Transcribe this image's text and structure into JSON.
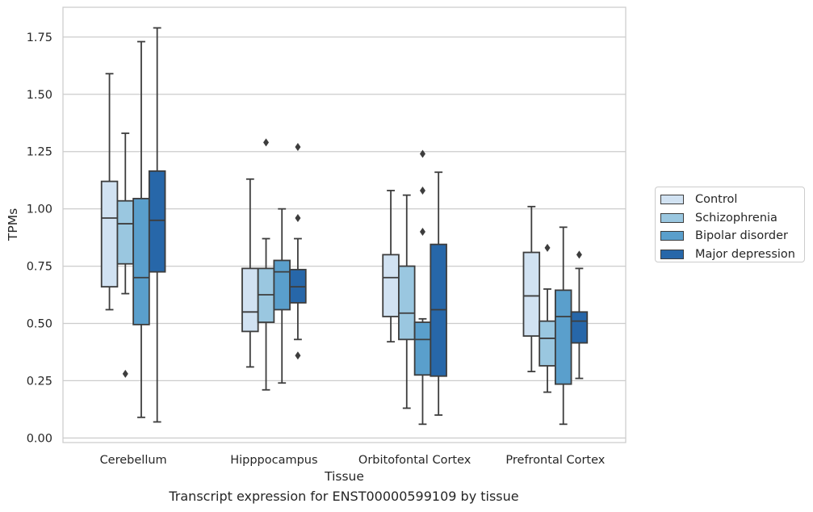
{
  "chart_data": {
    "type": "box",
    "title": "Transcript expression for ENST00000599109 by tissue",
    "xlabel": "Tissue",
    "ylabel": "TPMs",
    "ylim": [
      -0.02,
      1.88
    ],
    "yticks": [
      0.0,
      0.25,
      0.5,
      0.75,
      1.0,
      1.25,
      1.5,
      1.75
    ],
    "ytick_labels": [
      "0.00",
      "0.25",
      "0.50",
      "0.75",
      "1.00",
      "1.25",
      "1.50",
      "1.75"
    ],
    "grid": "horizontal",
    "legend_position": "right",
    "categories": [
      "Cerebellum",
      "Hipppocampus",
      "Orbitofontal Cortex",
      "Prefrontal Cortex"
    ],
    "series": [
      {
        "name": "Control",
        "color": "#d1e2f2",
        "boxes": [
          {
            "whislo": 0.56,
            "q1": 0.66,
            "med": 0.96,
            "q3": 1.12,
            "whishi": 1.59,
            "fliers": []
          },
          {
            "whislo": 0.31,
            "q1": 0.465,
            "med": 0.55,
            "q3": 0.74,
            "whishi": 1.13,
            "fliers": []
          },
          {
            "whislo": 0.42,
            "q1": 0.53,
            "med": 0.7,
            "q3": 0.8,
            "whishi": 1.08,
            "fliers": []
          },
          {
            "whislo": 0.29,
            "q1": 0.445,
            "med": 0.62,
            "q3": 0.81,
            "whishi": 1.01,
            "fliers": []
          }
        ]
      },
      {
        "name": "Schizophrenia",
        "color": "#9ac7e0",
        "boxes": [
          {
            "whislo": 0.63,
            "q1": 0.76,
            "med": 0.935,
            "q3": 1.035,
            "whishi": 1.33,
            "fliers": [
              0.28
            ]
          },
          {
            "whislo": 0.21,
            "q1": 0.505,
            "med": 0.625,
            "q3": 0.74,
            "whishi": 0.87,
            "fliers": [
              1.29
            ]
          },
          {
            "whislo": 0.13,
            "q1": 0.43,
            "med": 0.545,
            "q3": 0.75,
            "whishi": 1.06,
            "fliers": []
          },
          {
            "whislo": 0.2,
            "q1": 0.315,
            "med": 0.435,
            "q3": 0.51,
            "whishi": 0.65,
            "fliers": [
              0.83
            ]
          }
        ]
      },
      {
        "name": "Bipolar disorder",
        "color": "#5a9fcc",
        "boxes": [
          {
            "whislo": 0.09,
            "q1": 0.495,
            "med": 0.7,
            "q3": 1.045,
            "whishi": 1.73,
            "fliers": []
          },
          {
            "whislo": 0.24,
            "q1": 0.56,
            "med": 0.725,
            "q3": 0.775,
            "whishi": 1.0,
            "fliers": []
          },
          {
            "whislo": 0.06,
            "q1": 0.275,
            "med": 0.43,
            "q3": 0.505,
            "whishi": 0.52,
            "fliers": [
              0.9,
              1.08,
              1.24
            ]
          },
          {
            "whislo": 0.06,
            "q1": 0.235,
            "med": 0.53,
            "q3": 0.645,
            "whishi": 0.92,
            "fliers": []
          }
        ]
      },
      {
        "name": "Major depression",
        "color": "#2767a9",
        "boxes": [
          {
            "whislo": 0.07,
            "q1": 0.725,
            "med": 0.95,
            "q3": 1.165,
            "whishi": 1.79,
            "fliers": []
          },
          {
            "whislo": 0.43,
            "q1": 0.59,
            "med": 0.66,
            "q3": 0.735,
            "whishi": 0.87,
            "fliers": [
              0.36,
              0.96,
              1.27
            ]
          },
          {
            "whislo": 0.1,
            "q1": 0.27,
            "med": 0.56,
            "q3": 0.845,
            "whishi": 1.16,
            "fliers": []
          },
          {
            "whislo": 0.26,
            "q1": 0.415,
            "med": 0.51,
            "q3": 0.55,
            "whishi": 0.74,
            "fliers": [
              0.8
            ]
          }
        ]
      }
    ]
  },
  "legend": {
    "items": [
      {
        "label": "Control",
        "color": "#d1e2f2"
      },
      {
        "label": "Schizophrenia",
        "color": "#9ac7e0"
      },
      {
        "label": "Bipolar disorder",
        "color": "#5a9fcc"
      },
      {
        "label": "Major depression",
        "color": "#2767a9"
      }
    ]
  }
}
